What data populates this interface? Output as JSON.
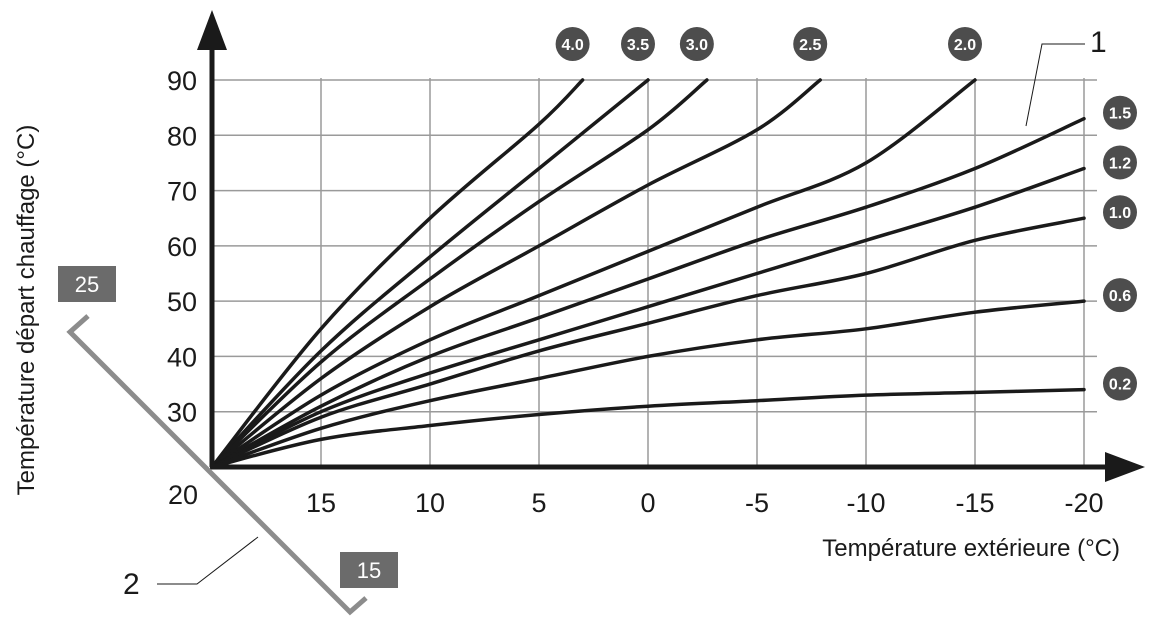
{
  "chart_data": {
    "type": "line",
    "xlabel": "Température extérieure (°C)",
    "ylabel": "Température départ chauffage (°C)",
    "xlim": [
      20,
      -20
    ],
    "ylim": [
      20,
      90
    ],
    "x_ticks": [
      "15",
      "10",
      "5",
      "0",
      "-5",
      "-10",
      "-15",
      "-20"
    ],
    "y_ticks": [
      "90",
      "80",
      "70",
      "60",
      "50",
      "40",
      "30"
    ],
    "origin_label": "20",
    "grid": true,
    "series": [
      {
        "name": "4.0",
        "x": [
          20,
          15,
          10,
          5,
          3
        ],
        "y": [
          20,
          45,
          65,
          82,
          90
        ]
      },
      {
        "name": "3.5",
        "x": [
          20,
          15,
          10,
          5,
          0
        ],
        "y": [
          20,
          41,
          58,
          74,
          90
        ]
      },
      {
        "name": "3.0",
        "x": [
          20,
          15,
          10,
          5,
          0,
          -2.7
        ],
        "y": [
          20,
          39,
          54,
          68,
          81,
          90
        ]
      },
      {
        "name": "2.5",
        "x": [
          20,
          15,
          10,
          5,
          0,
          -5,
          -7.9
        ],
        "y": [
          20,
          36,
          49,
          60,
          71,
          81,
          90
        ]
      },
      {
        "name": "2.0",
        "x": [
          20,
          15,
          10,
          5,
          0,
          -5,
          -10,
          -15
        ],
        "y": [
          20,
          33,
          43,
          51,
          59,
          67,
          75,
          90
        ]
      },
      {
        "name": "1.5",
        "x": [
          20,
          15,
          10,
          5,
          0,
          -5,
          -10,
          -15,
          -20
        ],
        "y": [
          20,
          31,
          40,
          47,
          54,
          61,
          67,
          74,
          83
        ]
      },
      {
        "name": "1.2",
        "x": [
          20,
          15,
          10,
          5,
          0,
          -5,
          -10,
          -15,
          -20
        ],
        "y": [
          20,
          30,
          37,
          43,
          49,
          55,
          61,
          67,
          74
        ]
      },
      {
        "name": "1.0",
        "x": [
          20,
          15,
          10,
          5,
          0,
          -5,
          -10,
          -15,
          -20
        ],
        "y": [
          20,
          29,
          35,
          41,
          46,
          51,
          55,
          61,
          65
        ]
      },
      {
        "name": "0.6",
        "x": [
          20,
          15,
          10,
          5,
          0,
          -5,
          -10,
          -15,
          -20
        ],
        "y": [
          20,
          27,
          32,
          36,
          40,
          43,
          45,
          48,
          50
        ]
      },
      {
        "name": "0.2",
        "x": [
          20,
          15,
          10,
          5,
          0,
          -5,
          -10,
          -15,
          -20
        ],
        "y": [
          20,
          25,
          27.5,
          29.5,
          31,
          32,
          33,
          33.5,
          34
        ]
      }
    ]
  },
  "callouts": {
    "callout_1": "1",
    "callout_2": "2",
    "room_setpoint_high": "25",
    "room_setpoint_low": "15"
  },
  "colors": {
    "curve": "#1a1a1a",
    "grid": "#9a9a9a",
    "badge": "#4d4d4d",
    "room_axis": "#8c8c8c"
  }
}
